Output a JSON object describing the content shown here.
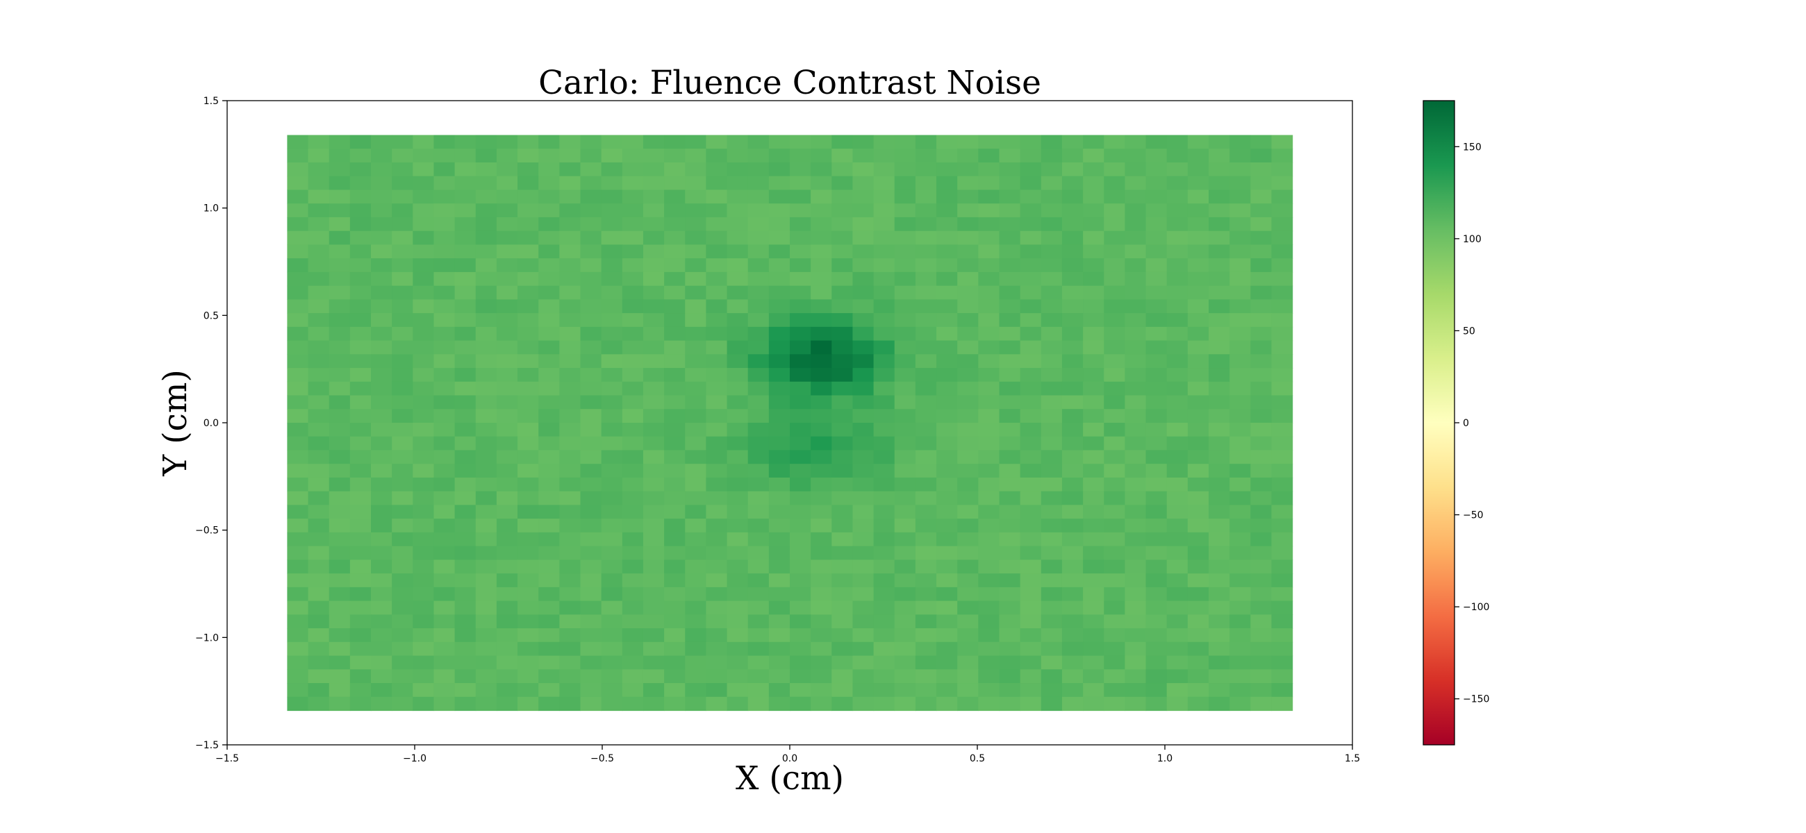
{
  "chart_data": {
    "type": "heatmap",
    "title": "Carlo: Fluence Contrast Noise",
    "xlabel": "X (cm)",
    "ylabel": "Y (cm)",
    "xlim": [
      -1.5,
      1.5
    ],
    "ylim": [
      -1.5,
      1.5
    ],
    "grid": false,
    "colormap": "RdYlGn",
    "colormap_stops": [
      "#a50026",
      "#d73027",
      "#f46d43",
      "#fdae61",
      "#fee08b",
      "#ffffbf",
      "#d9ef8b",
      "#a6d96a",
      "#66bd63",
      "#1a9850",
      "#006837"
    ],
    "color_range": [
      -175,
      175
    ],
    "colorbar_ticks": [
      150,
      100,
      50,
      0,
      -50,
      -100,
      -150
    ],
    "xticks": [
      -1.5,
      -1.0,
      -0.5,
      0.0,
      0.5,
      1.0,
      1.5
    ],
    "yticks": [
      1.5,
      1.0,
      0.5,
      0.0,
      -0.5,
      -1.0,
      -1.5
    ],
    "xtick_labels": [
      "−1.5",
      "−1.0",
      "−0.5",
      "0.0",
      "0.5",
      "1.0",
      "1.5"
    ],
    "ytick_labels": [
      "1.5",
      "1.0",
      "0.5",
      "0.0",
      "−0.5",
      "−1.0",
      "−1.5"
    ],
    "colorbar_tick_labels": [
      "150",
      "100",
      "50",
      "0",
      "−50",
      "−100",
      "−150"
    ],
    "grid_extent_x": [
      -1.34,
      1.34
    ],
    "grid_extent_y": [
      -1.34,
      1.34
    ],
    "grid_shape": [
      42,
      48
    ],
    "background_value": 110,
    "noise_amplitude": 7,
    "features": [
      {
        "x": 0.09,
        "y": 0.3,
        "value": 172,
        "radius": 0.2
      },
      {
        "x": 0.07,
        "y": -0.13,
        "value": 135,
        "radius": 0.2
      }
    ]
  }
}
